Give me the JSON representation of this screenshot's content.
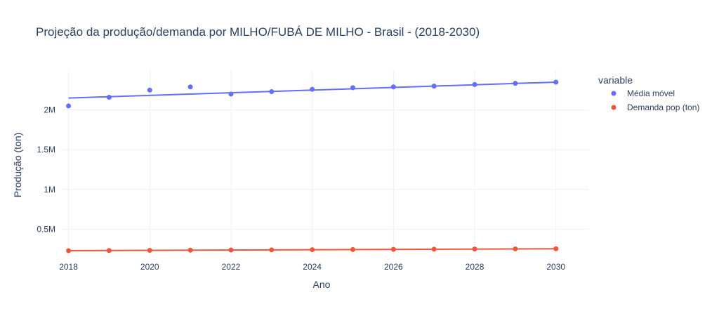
{
  "chart_data": {
    "type": "scatter",
    "title": "Projeção da produção/demanda por MILHO/FUBÁ DE MILHO - Brasil - (2018-2030)",
    "xlabel": "Ano",
    "ylabel": "Produção (ton)",
    "xlim": [
      2017.8,
      2030.8
    ],
    "ylim": [
      150000,
      2500000
    ],
    "x_ticks": [
      2018,
      2020,
      2022,
      2024,
      2026,
      2028,
      2030
    ],
    "x_tick_labels": [
      "2018",
      "2020",
      "2022",
      "2024",
      "2026",
      "2028",
      "2030"
    ],
    "y_ticks": [
      500000,
      1000000,
      1500000,
      2000000
    ],
    "y_tick_labels": [
      "0.5M",
      "1M",
      "1.5M",
      "2M"
    ],
    "grid": true,
    "legend": {
      "title": "variable",
      "placement": "top-right"
    },
    "series": [
      {
        "name": "Média móvel",
        "color": "#636efa",
        "x": [
          2018,
          2019,
          2020,
          2021,
          2022,
          2023,
          2024,
          2025,
          2026,
          2027,
          2028,
          2029,
          2030
        ],
        "values": [
          2050000,
          2160000,
          2250000,
          2290000,
          2200000,
          2230000,
          2260000,
          2280000,
          2290000,
          2300000,
          2320000,
          2335000,
          2350000
        ],
        "trend": [
          2150000,
          2350000
        ]
      },
      {
        "name": "Demanda pop (ton)",
        "color": "#ef553b",
        "x": [
          2018,
          2019,
          2020,
          2021,
          2022,
          2023,
          2024,
          2025,
          2026,
          2027,
          2028,
          2029,
          2030
        ],
        "values": [
          230000,
          232000,
          234000,
          236000,
          238000,
          240000,
          242000,
          244000,
          246000,
          248000,
          250000,
          252000,
          254000
        ],
        "trend": [
          230000,
          254000
        ]
      }
    ]
  }
}
